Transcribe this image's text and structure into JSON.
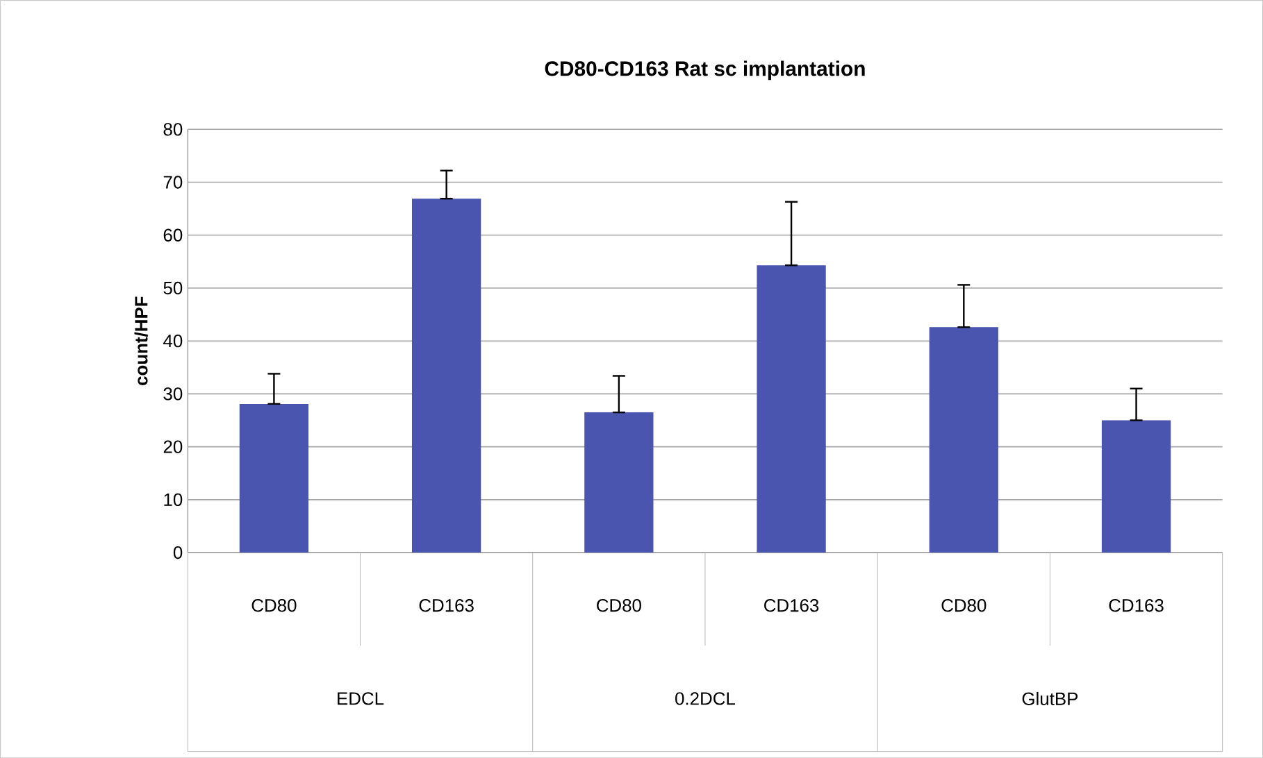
{
  "chart_data": {
    "type": "bar",
    "title": "CD80-CD163 Rat sc implantation",
    "ylabel": "count/HPF",
    "categories": [
      "CD80",
      "CD163",
      "CD80",
      "CD163",
      "CD80",
      "CD163"
    ],
    "values": [
      28.1,
      66.9,
      26.5,
      54.3,
      42.6,
      25.0
    ],
    "errors": [
      [
        28.1,
        33.8
      ],
      [
        66.9,
        72.2
      ],
      [
        26.5,
        33.4
      ],
      [
        54.3,
        66.3
      ],
      [
        42.6,
        50.6
      ],
      [
        25.0,
        31.0
      ]
    ],
    "color": "#4a55b0",
    "annotations": [
      "EDCL",
      "0.2DCL",
      "GlutBP"
    ],
    "ylim": [
      0,
      80
    ],
    "yticks": [
      0,
      10,
      20,
      30,
      40,
      50,
      60,
      70,
      80
    ],
    "grid": "y"
  }
}
